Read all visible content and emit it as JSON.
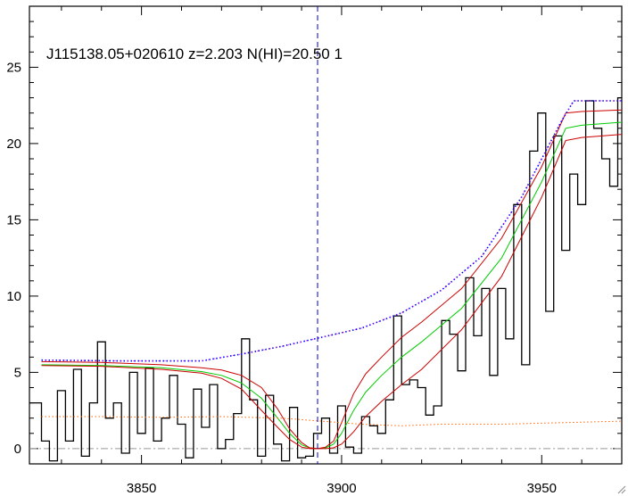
{
  "chart_data": {
    "type": "line",
    "title": "J115138.05+020610 z=2.203 N(HI)=20.50 1",
    "xlabel": "",
    "ylabel": "",
    "xlim": [
      3822,
      3970
    ],
    "ylim": [
      -1,
      29
    ],
    "xticks": [
      3850,
      3900,
      3950
    ],
    "yticks": [
      0,
      5,
      10,
      15,
      20,
      25
    ],
    "grid": false,
    "marker_line_x": 3894,
    "zero_level": 0,
    "colors": {
      "flux": "#000000",
      "model": "#00cc00",
      "model_bounds": "#cc0000",
      "continuum": "#0000ff",
      "continuum_dots": "#ff00ff",
      "error": "#ff6600",
      "marker": "#0000cc",
      "zero": "#999999"
    },
    "series": [
      {
        "key": "flux",
        "style": "step",
        "x": [
          3822,
          3825,
          3827,
          3829,
          3831,
          3833,
          3835,
          3837,
          3839,
          3841,
          3843,
          3845,
          3847,
          3849,
          3851,
          3853,
          3855,
          3857,
          3859,
          3861,
          3863,
          3865,
          3867,
          3869,
          3871,
          3873,
          3875,
          3877,
          3879,
          3881,
          3883,
          3885,
          3887,
          3889,
          3891,
          3893,
          3895,
          3897,
          3899,
          3901,
          3903,
          3905,
          3907,
          3909,
          3911,
          3913,
          3915,
          3917,
          3919,
          3921,
          3923,
          3925,
          3927,
          3929,
          3931,
          3933,
          3935,
          3937,
          3939,
          3941,
          3943,
          3945,
          3947,
          3949,
          3951,
          3953,
          3955,
          3957,
          3959,
          3961,
          3963,
          3965,
          3967,
          3969
        ],
        "values": [
          3,
          0.5,
          -0.8,
          3.8,
          0.5,
          5.2,
          -0.5,
          3,
          7,
          2,
          3,
          -0.3,
          5,
          1,
          5.3,
          0.5,
          2,
          4.8,
          1.6,
          -0.6,
          3.9,
          1.4,
          4.2,
          0,
          0.6,
          2.3,
          7.2,
          3.2,
          -0.5,
          3.5,
          0.3,
          -0.8,
          2.7,
          -0.6,
          -0.5,
          1,
          2,
          -0.3,
          2.8,
          0.1,
          -0.3,
          2.1,
          1.5,
          1,
          3.2,
          8.7,
          4.2,
          4.5,
          4,
          2.2,
          2.8,
          8.4,
          7.5,
          5.1,
          11.2,
          7.4,
          10.5,
          4.8,
          10.5,
          7.2,
          16,
          5.5,
          19.5,
          22,
          9,
          20.5,
          13,
          18,
          16,
          22.8,
          21,
          19,
          17.2,
          23
        ]
      },
      {
        "key": "model",
        "style": "line",
        "x": [
          3825,
          3840,
          3855,
          3865,
          3870,
          3875,
          3880,
          3884,
          3887,
          3890,
          3892,
          3894,
          3896,
          3898,
          3900,
          3903,
          3906,
          3910,
          3915,
          3920,
          3930,
          3940,
          3950,
          3956,
          3960,
          3970
        ],
        "values": [
          5.5,
          5.45,
          5.3,
          5.05,
          4.8,
          4.3,
          3.3,
          2,
          1,
          0.25,
          0.05,
          0,
          0.05,
          0.3,
          1,
          2.5,
          3.7,
          4.8,
          6,
          7,
          9.2,
          12.5,
          17.5,
          21,
          21.2,
          21.4
        ]
      },
      {
        "key": "model_upper",
        "style": "line",
        "x": [
          3825,
          3840,
          3855,
          3865,
          3870,
          3875,
          3880,
          3884,
          3887,
          3890,
          3892,
          3894,
          3896,
          3898,
          3900,
          3903,
          3906,
          3910,
          3915,
          3920,
          3930,
          3940,
          3950,
          3956,
          3960,
          3970
        ],
        "values": [
          5.7,
          5.65,
          5.5,
          5.3,
          5.15,
          4.8,
          4,
          2.6,
          1.3,
          0.4,
          0.05,
          0,
          0.1,
          0.5,
          1.7,
          3.6,
          4.9,
          6,
          7.3,
          8.3,
          10.5,
          13.8,
          18.5,
          22,
          22.1,
          22.2
        ]
      },
      {
        "key": "model_lower",
        "style": "line",
        "x": [
          3825,
          3840,
          3855,
          3865,
          3870,
          3875,
          3880,
          3884,
          3887,
          3890,
          3892,
          3894,
          3896,
          3898,
          3900,
          3903,
          3906,
          3910,
          3915,
          3920,
          3930,
          3940,
          3950,
          3956,
          3960,
          3970
        ],
        "values": [
          5.45,
          5.4,
          5.2,
          4.95,
          4.6,
          3.9,
          2.5,
          1.4,
          0.6,
          0.1,
          0,
          0,
          0,
          0.05,
          0.3,
          1.1,
          2.1,
          3.1,
          4.2,
          5.2,
          7.8,
          11.3,
          16.5,
          20.2,
          20.4,
          20.6
        ]
      },
      {
        "key": "continuum",
        "style": "dotted",
        "x": [
          3825,
          3845,
          3865,
          3875,
          3885,
          3895,
          3905,
          3915,
          3925,
          3935,
          3945,
          3955,
          3958,
          3970
        ],
        "values": [
          5.8,
          5.75,
          5.75,
          6.2,
          6.7,
          7.3,
          7.9,
          8.9,
          10.4,
          12.6,
          16.5,
          21.5,
          22.8,
          22.8
        ]
      },
      {
        "key": "error",
        "style": "dotted",
        "x": [
          3825,
          3840,
          3855,
          3870,
          3885,
          3895,
          3905,
          3915,
          3925,
          3940,
          3955,
          3970
        ],
        "values": [
          2.1,
          2.1,
          2.05,
          2.1,
          2,
          1.8,
          1.6,
          1.5,
          1.6,
          1.6,
          1.7,
          1.8
        ]
      }
    ]
  }
}
